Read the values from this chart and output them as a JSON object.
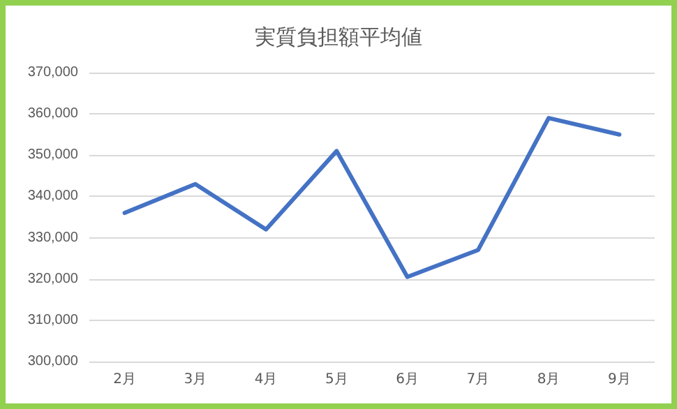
{
  "chart_data": {
    "type": "line",
    "title": "実質負担額平均値",
    "categories": [
      "2月",
      "3月",
      "4月",
      "5月",
      "6月",
      "7月",
      "8月",
      "9月"
    ],
    "series": [
      {
        "color": "#4472c4",
        "values": [
          336000,
          343000,
          332000,
          351000,
          320500,
          327000,
          359000,
          355000
        ]
      }
    ],
    "ylim": [
      300000,
      370000
    ],
    "yticks": [
      {
        "value": 300000,
        "label": "300,000"
      },
      {
        "value": 310000,
        "label": "310,000"
      },
      {
        "value": 320000,
        "label": "320,000"
      },
      {
        "value": 330000,
        "label": "330,000"
      },
      {
        "value": 340000,
        "label": "340,000"
      },
      {
        "value": 350000,
        "label": "350,000"
      },
      {
        "value": 360000,
        "label": "360,000"
      },
      {
        "value": 370000,
        "label": "370,000"
      }
    ],
    "grid": "y",
    "marker": "none"
  }
}
